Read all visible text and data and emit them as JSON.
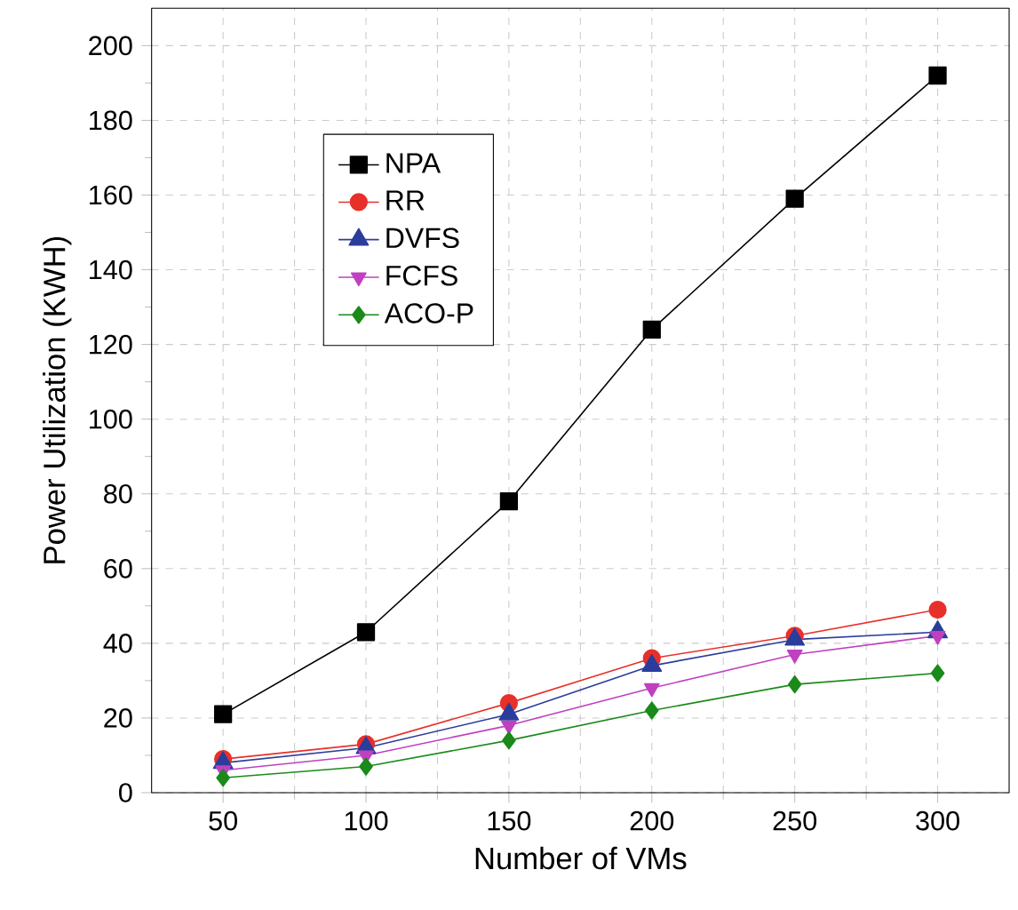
{
  "chart_data": {
    "type": "line",
    "xlabel": "Number of VMs",
    "ylabel": "Power Utilization (KWH)",
    "x": [
      50,
      100,
      150,
      200,
      250,
      300
    ],
    "series": [
      {
        "name": "NPA",
        "color": "#000000",
        "marker": "square",
        "values": [
          21,
          43,
          78,
          124,
          159,
          192
        ]
      },
      {
        "name": "RR",
        "color": "#e8302a",
        "marker": "circle",
        "values": [
          9,
          13,
          24,
          36,
          42,
          49
        ]
      },
      {
        "name": "DVFS",
        "color": "#2b3d9c",
        "marker": "triangle",
        "values": [
          8,
          12,
          21,
          34,
          41,
          43
        ]
      },
      {
        "name": "FCFS",
        "color": "#c040c0",
        "marker": "triangle-down",
        "values": [
          6,
          10,
          18,
          28,
          37,
          42
        ]
      },
      {
        "name": "ACO-P",
        "color": "#1a8a1a",
        "marker": "diamond",
        "values": [
          4,
          7,
          14,
          22,
          29,
          32
        ]
      }
    ],
    "xlim": [
      25,
      325
    ],
    "xticks": [
      50,
      100,
      150,
      200,
      250,
      300
    ],
    "ylim": [
      0,
      210
    ],
    "yticks": [
      0,
      20,
      40,
      60,
      80,
      100,
      120,
      140,
      160,
      180,
      200
    ],
    "grid": true,
    "legend": "top left",
    "line_style": "solid"
  }
}
